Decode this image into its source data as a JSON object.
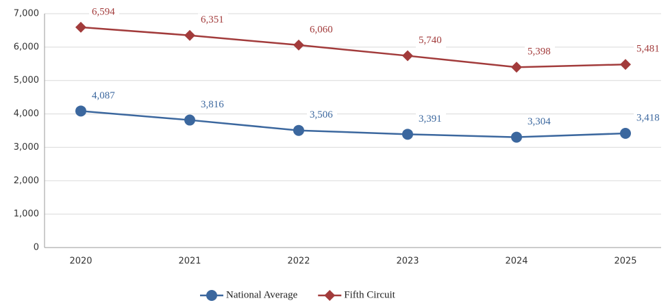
{
  "chart_data": {
    "type": "line",
    "categories": [
      "2020",
      "2021",
      "2022",
      "2023",
      "2024",
      "2025"
    ],
    "series": [
      {
        "name": "National Average",
        "color": "#3b679e",
        "marker": "circle",
        "values": [
          4087,
          3816,
          3506,
          3391,
          3304,
          3418
        ],
        "value_labels": [
          "4,087",
          "3,816",
          "3,506",
          "3,391",
          "3,304",
          "3,418"
        ]
      },
      {
        "name": "Fifth Circuit",
        "color": "#a23b3b",
        "marker": "diamond",
        "values": [
          6594,
          6351,
          6060,
          5740,
          5398,
          5481
        ],
        "value_labels": [
          "6,594",
          "6,351",
          "6,060",
          "5,740",
          "5,398",
          "5,481"
        ]
      }
    ],
    "ylim": [
      0,
      7000
    ],
    "yticks": [
      {
        "value": 0,
        "label": "0"
      },
      {
        "value": 1000,
        "label": "1,000"
      },
      {
        "value": 2000,
        "label": "2,000"
      },
      {
        "value": 3000,
        "label": "3,000"
      },
      {
        "value": 4000,
        "label": "4,000"
      },
      {
        "value": 5000,
        "label": "5,000"
      },
      {
        "value": 6000,
        "label": "6,000"
      },
      {
        "value": 7000,
        "label": "7,000"
      }
    ],
    "grid": true,
    "legend": "bottom"
  }
}
